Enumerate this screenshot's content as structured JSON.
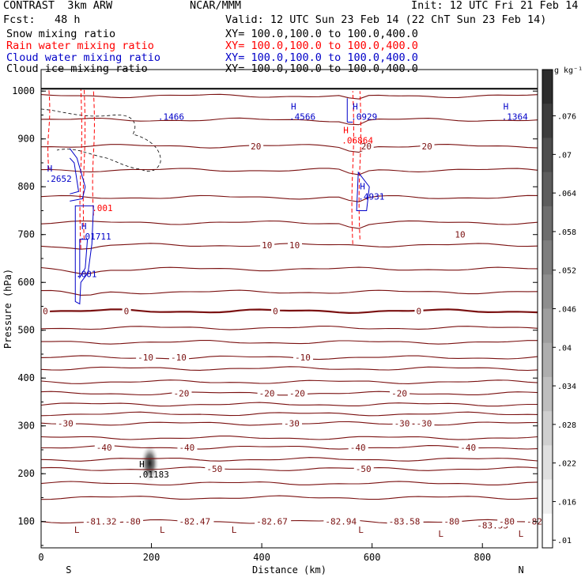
{
  "header": {
    "model": "CONTRAST  3km ARW",
    "org": "NCAR/MMM",
    "init": "Init: 12 UTC Fri 21 Feb 14",
    "fcst": "Fcst:   48 h",
    "valid": "Valid: 12 UTC Sun 23 Feb 14 (22 ChT Sun 23 Feb 14)"
  },
  "fields": [
    {
      "label": "Snow mixing ratio",
      "xy": "XY= 100.0,100.0 to 100.0,400.0",
      "color": "#000000"
    },
    {
      "label": "Rain water mixing ratio",
      "xy": "XY= 100.0,100.0 to 100.0,400.0",
      "color": "#ff0000"
    },
    {
      "label": "Cloud water mixing ratio",
      "xy": "XY= 100.0,100.0 to 100.0,400.0",
      "color": "#0000c8"
    },
    {
      "label": "Cloud ice mixing ratio",
      "xy": "XY= 100.0,100.0 to 100.0,400.0",
      "color": "#000000"
    }
  ],
  "colorbar": {
    "unit": "g kg⁻¹",
    "ticks": [
      ".076",
      ".07",
      ".064",
      ".058",
      ".052",
      ".046",
      ".04",
      ".034",
      ".028",
      ".022",
      ".016",
      ".01"
    ]
  },
  "chart_data": {
    "type": "cross-section",
    "xlabel": "Distance (km)",
    "ylabel": "Pressure (hPa)",
    "xlim": [
      0,
      900
    ],
    "ylim": [
      1045,
      45
    ],
    "x_ticks": [
      "0",
      "200",
      "400",
      "600",
      "800"
    ],
    "y_ticks": [
      "100",
      "200",
      "300",
      "400",
      "500",
      "600",
      "700",
      "800",
      "900",
      "1000"
    ],
    "endpoints": {
      "left": "S",
      "right": "N"
    },
    "temperature_contours": {
      "color": "#7a1010",
      "levels": [
        {
          "p": 100,
          "label": "-81.32",
          "lx": 80
        },
        {
          "p": 150,
          "label": "",
          "lx": 0
        },
        {
          "p": 180,
          "label": "",
          "lx": 0
        },
        {
          "p": 210,
          "label": "-50",
          "lx": 300
        },
        {
          "p": 230,
          "label": "",
          "lx": 0
        },
        {
          "p": 255,
          "label": "-40",
          "lx": 100
        },
        {
          "p": 275,
          "label": "",
          "lx": 0
        },
        {
          "p": 305,
          "label": "-30",
          "lx": 30
        },
        {
          "p": 325,
          "label": "",
          "lx": 0
        },
        {
          "p": 345,
          "label": "",
          "lx": 0
        },
        {
          "p": 368,
          "label": "-20",
          "lx": 240
        },
        {
          "p": 392,
          "label": "",
          "lx": 0
        },
        {
          "p": 420,
          "label": "",
          "lx": 0
        },
        {
          "p": 443,
          "label": "-10",
          "lx": 175
        },
        {
          "p": 475,
          "label": "",
          "lx": 0
        },
        {
          "p": 505,
          "label": "",
          "lx": 0
        },
        {
          "p": 540,
          "label": "0",
          "lx": 150
        },
        {
          "p": 580,
          "label": "",
          "lx": 0
        },
        {
          "p": 628,
          "label": "",
          "lx": 0
        },
        {
          "p": 678,
          "label": "10",
          "lx": 400
        },
        {
          "p": 725,
          "label": "",
          "lx": 0
        },
        {
          "p": 778,
          "label": "",
          "lx": 0
        },
        {
          "p": 835,
          "label": "",
          "lx": 0
        },
        {
          "p": 885,
          "label": "20",
          "lx": 380
        },
        {
          "p": 940,
          "label": "",
          "lx": 0
        },
        {
          "p": 990,
          "label": "",
          "lx": 0
        }
      ],
      "extra_labels": [
        {
          "x": 152,
          "p": 100,
          "label": "-80"
        },
        {
          "x": 250,
          "p": 100,
          "label": "-82.47"
        },
        {
          "x": 390,
          "p": 100,
          "label": "-82.67"
        },
        {
          "x": 515,
          "p": 100,
          "label": "-82.94"
        },
        {
          "x": 630,
          "p": 100,
          "label": "-83.58"
        },
        {
          "x": 730,
          "p": 100,
          "label": "-80"
        },
        {
          "x": 790,
          "p": 92,
          "label": "-83.53"
        },
        {
          "x": 830,
          "p": 100,
          "label": "-80"
        },
        {
          "x": 880,
          "p": 100,
          "label": "-82."
        },
        {
          "x": 570,
          "p": 210,
          "label": "-50"
        },
        {
          "x": 250,
          "p": 255,
          "label": "-40"
        },
        {
          "x": 560,
          "p": 255,
          "label": "-40"
        },
        {
          "x": 760,
          "p": 255,
          "label": "-40"
        },
        {
          "x": 440,
          "p": 305,
          "label": "-30"
        },
        {
          "x": 640,
          "p": 305,
          "label": "-30"
        },
        {
          "x": 680,
          "p": 305,
          "label": "-30"
        },
        {
          "x": 395,
          "p": 368,
          "label": "-20"
        },
        {
          "x": 450,
          "p": 368,
          "label": "-20"
        },
        {
          "x": 635,
          "p": 368,
          "label": "-20"
        },
        {
          "x": 235,
          "p": 443,
          "label": "-10"
        },
        {
          "x": 460,
          "p": 443,
          "label": "-10"
        },
        {
          "x": 3,
          "p": 540,
          "label": "0"
        },
        {
          "x": 420,
          "p": 540,
          "label": "0"
        },
        {
          "x": 680,
          "p": 540,
          "label": "0"
        },
        {
          "x": 450,
          "p": 678,
          "label": "10"
        },
        {
          "x": 750,
          "p": 700,
          "label": "10"
        },
        {
          "x": 580,
          "p": 885,
          "label": "20"
        },
        {
          "x": 690,
          "p": 885,
          "label": "20"
        }
      ]
    },
    "extrema_labels": [
      {
        "x": 175,
        "p": 199,
        "label": ".01183",
        "color": "#000000",
        "kind": "H"
      },
      {
        "x": 63,
        "p": 618,
        "label": ".001",
        "color": "#0000c8",
        "kind": ""
      },
      {
        "x": 70,
        "p": 696,
        "label": ".01711",
        "color": "#0000c8",
        "kind": "H"
      },
      {
        "x": 92,
        "p": 756,
        "label": ".001",
        "color": "#ff0000",
        "kind": ""
      },
      {
        "x": 8,
        "p": 817,
        "label": ".2652",
        "color": "#0000c8",
        "kind": "H"
      },
      {
        "x": 575,
        "p": 780,
        "label": ".4931",
        "color": "#0000c8",
        "kind": "H"
      },
      {
        "x": 545,
        "p": 897,
        "label": ".06864",
        "color": "#ff0000",
        "kind": "H"
      },
      {
        "x": 212,
        "p": 947,
        "label": ".1466",
        "color": "#0000c8",
        "kind": ""
      },
      {
        "x": 450,
        "p": 947,
        "label": ".4566",
        "color": "#0000c8",
        "kind": "H"
      },
      {
        "x": 562,
        "p": 947,
        "label": ".0929",
        "color": "#0000c8",
        "kind": "H"
      },
      {
        "x": 835,
        "p": 947,
        "label": ".1364",
        "color": "#0000c8",
        "kind": "H"
      }
    ],
    "temperature_local_labels": [
      {
        "x": 60,
        "p": 83,
        "label": "L"
      },
      {
        "x": 215,
        "p": 83,
        "label": "L"
      },
      {
        "x": 345,
        "p": 83,
        "label": "L"
      },
      {
        "x": 575,
        "p": 83,
        "label": "L"
      },
      {
        "x": 720,
        "p": 75,
        "label": "L"
      },
      {
        "x": 865,
        "p": 75,
        "label": "L"
      }
    ],
    "cloud_ice_max": 0.076
  }
}
